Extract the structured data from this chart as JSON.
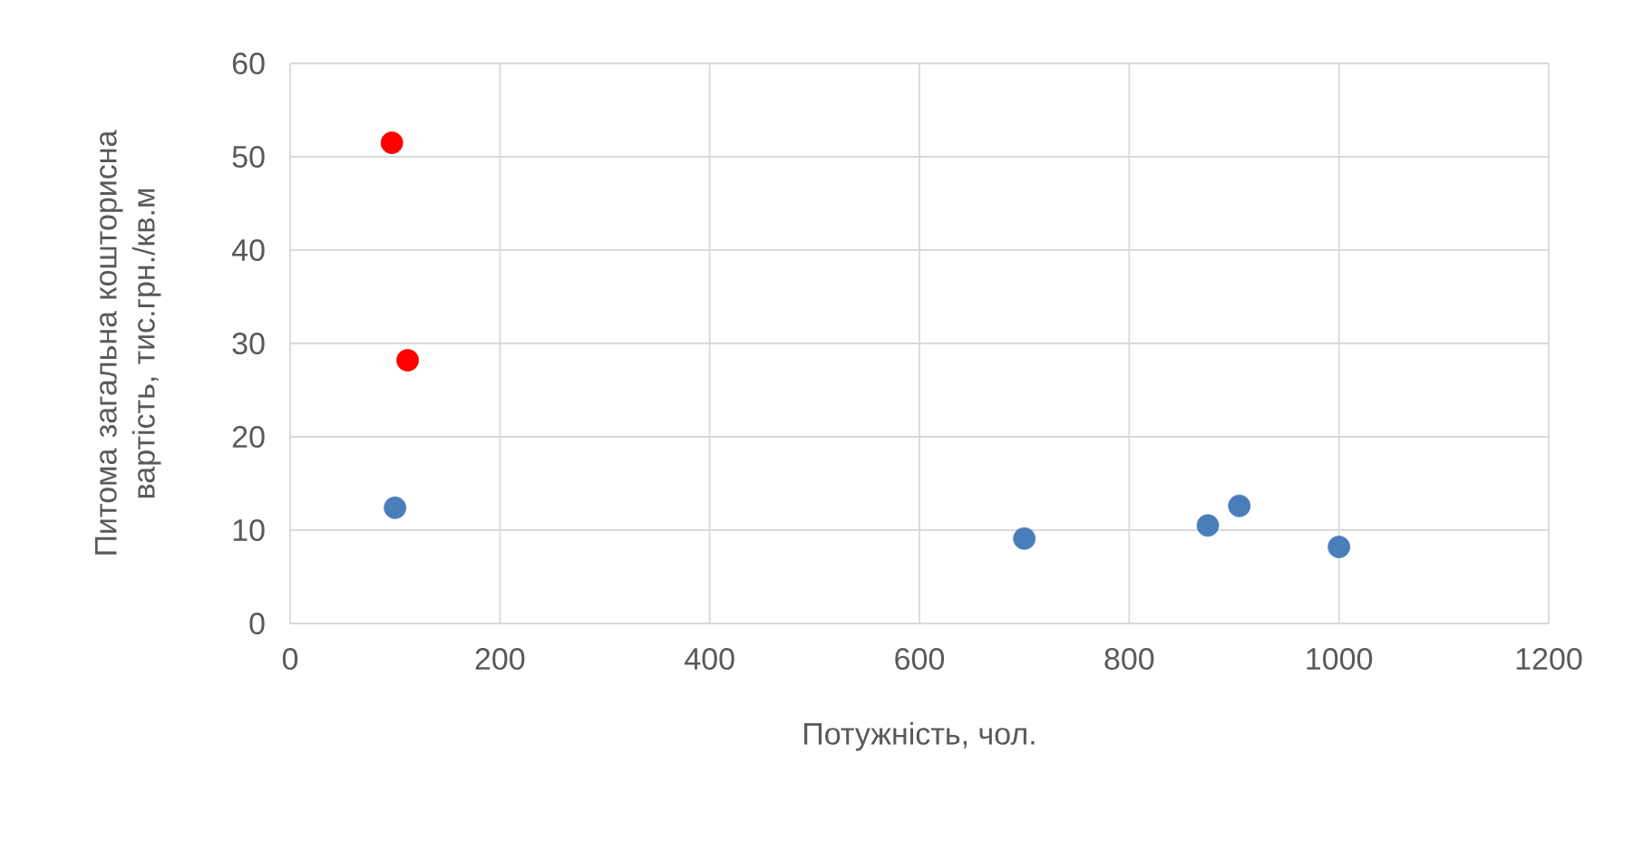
{
  "chart_data": {
    "type": "scatter",
    "xlabel": "Потужність, чол.",
    "ylabel": "Питома загальна кошторисна вартість, тис.грн./кв.м",
    "xlim": [
      0,
      1200
    ],
    "xticks": [
      0,
      200,
      400,
      600,
      800,
      1000,
      1200
    ],
    "ylim": [
      0,
      60
    ],
    "yticks": [
      0,
      10,
      20,
      30,
      40,
      50,
      60
    ],
    "grid": true,
    "series": [
      {
        "color": "#4a7ebb",
        "x": [
          100,
          700,
          875,
          905,
          1000
        ],
        "values": [
          12.4,
          9.1,
          10.5,
          12.6,
          8.2
        ]
      },
      {
        "color": "#ff0000",
        "x": [
          97,
          112
        ],
        "values": [
          51.5,
          28.2
        ]
      }
    ]
  }
}
